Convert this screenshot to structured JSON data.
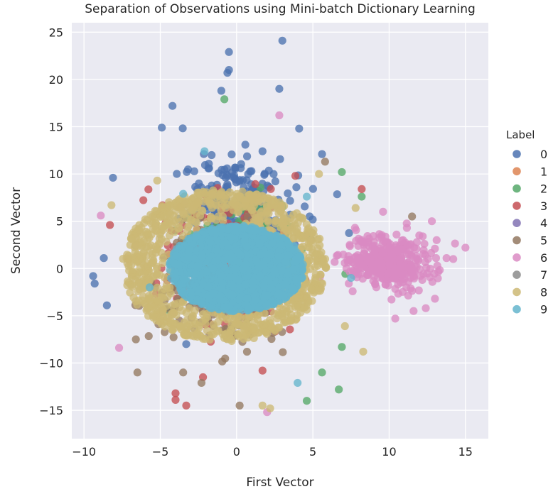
{
  "chart_data": {
    "type": "scatter",
    "title": "Separation of Observations using Mini-batch Dictionary Learning",
    "xlabel": "First Vector",
    "ylabel": "Second Vector",
    "xlim": [
      -10.8,
      16.5
    ],
    "ylim": [
      -18,
      26
    ],
    "xticks": [
      -10,
      -5,
      0,
      5,
      10,
      15
    ],
    "yticks": [
      -15,
      -10,
      -5,
      0,
      5,
      10,
      15,
      20,
      25
    ],
    "grid": true,
    "legend": {
      "title": "Label",
      "placement": "right",
      "entries": [
        "0",
        "1",
        "2",
        "3",
        "4",
        "5",
        "6",
        "7",
        "8",
        "9"
      ]
    },
    "series": [
      {
        "label": "0",
        "color": "#4c72b0",
        "center": [
          0.0,
          6.5
        ],
        "spread": [
          3.0,
          4.5
        ],
        "points": [
          [
            3.0,
            24.1
          ],
          [
            -0.5,
            22.9
          ],
          [
            -0.6,
            20.7
          ],
          [
            -0.5,
            21.0
          ],
          [
            -8.1,
            9.6
          ],
          [
            -8.7,
            1.1
          ],
          [
            -9.4,
            -0.8
          ],
          [
            -9.3,
            -1.6
          ],
          [
            -8.5,
            -3.9
          ],
          [
            -3.3,
            -8.0
          ],
          [
            -4.9,
            14.9
          ],
          [
            -4.2,
            17.2
          ],
          [
            -1.0,
            18.8
          ],
          [
            2.8,
            19.0
          ],
          [
            4.1,
            14.8
          ],
          [
            5.6,
            12.1
          ],
          [
            -1.8,
            10.6
          ],
          [
            1.7,
            12.4
          ]
        ]
      },
      {
        "label": "1",
        "color": "#dd8452",
        "center": [
          0.0,
          0.0
        ],
        "spread": [
          2.0,
          2.0
        ],
        "points": []
      },
      {
        "label": "2",
        "color": "#55a868",
        "center": [
          0.5,
          2.0
        ],
        "spread": [
          3.5,
          4.5
        ],
        "points": [
          [
            6.9,
            10.2
          ],
          [
            8.2,
            7.6
          ],
          [
            6.7,
            -12.8
          ],
          [
            4.6,
            -14.0
          ],
          [
            6.9,
            -8.3
          ],
          [
            5.6,
            -11.0
          ],
          [
            -0.8,
            17.9
          ]
        ]
      },
      {
        "label": "3",
        "color": "#c44e52",
        "center": [
          -1.0,
          1.0
        ],
        "spread": [
          3.5,
          5.5
        ],
        "points": [
          [
            -4.0,
            -13.9
          ],
          [
            -4.0,
            -13.2
          ],
          [
            -3.3,
            -14.5
          ],
          [
            -8.3,
            4.6
          ],
          [
            8.2,
            8.4
          ],
          [
            -2.2,
            -11.5
          ],
          [
            1.7,
            -10.8
          ]
        ]
      },
      {
        "label": "4",
        "color": "#8172b3",
        "center": [
          0.0,
          0.0
        ],
        "spread": [
          2.0,
          2.0
        ],
        "points": []
      },
      {
        "label": "5",
        "color": "#937860",
        "center": [
          -1.5,
          -2.0
        ],
        "spread": [
          3.5,
          5.0
        ],
        "points": [
          [
            -6.5,
            -11.0
          ],
          [
            0.2,
            -14.5
          ],
          [
            -2.3,
            -12.1
          ],
          [
            -3.5,
            -11.0
          ],
          [
            11.5,
            5.5
          ],
          [
            5.8,
            11.3
          ],
          [
            -6.6,
            -7.5
          ]
        ]
      },
      {
        "label": "6",
        "color": "#da8bc3",
        "center": [
          10.0,
          0.6
        ],
        "spread": [
          2.3,
          2.3
        ],
        "points": [
          [
            15.0,
            2.2
          ],
          [
            14.2,
            1.0
          ],
          [
            12.8,
            5.0
          ],
          [
            12.2,
            3.4
          ],
          [
            13.0,
            -3.2
          ],
          [
            12.4,
            -4.2
          ],
          [
            10.4,
            -5.3
          ],
          [
            11.6,
            -4.5
          ],
          [
            9.6,
            6.0
          ],
          [
            -7.7,
            -8.4
          ],
          [
            -8.9,
            5.6
          ],
          [
            2.0,
            -15.2
          ],
          [
            2.8,
            16.2
          ]
        ]
      },
      {
        "label": "7",
        "color": "#8c8c8c",
        "center": [
          0.0,
          0.0
        ],
        "spread": [
          2.0,
          2.0
        ],
        "points": []
      },
      {
        "label": "8",
        "color": "#ccb974",
        "center": [
          -0.8,
          0.3
        ],
        "spread": [
          4.3,
          4.5
        ],
        "points": [
          [
            8.3,
            -8.8
          ],
          [
            7.1,
            -6.1
          ],
          [
            -8.2,
            6.7
          ],
          [
            7.8,
            6.4
          ],
          [
            1.7,
            -14.5
          ],
          [
            2.2,
            -14.8
          ],
          [
            5.4,
            10.0
          ],
          [
            -5.2,
            9.3
          ]
        ]
      },
      {
        "label": "9",
        "color": "#64b5cd",
        "center": [
          0.0,
          0.0
        ],
        "spread": [
          4.2,
          4.2
        ],
        "points": [
          [
            7.5,
            -1.0
          ],
          [
            4.6,
            7.6
          ],
          [
            -3.5,
            7.9
          ],
          [
            -5.7,
            -2.0
          ],
          [
            4.0,
            -12.1
          ],
          [
            -2.1,
            12.4
          ]
        ]
      }
    ]
  }
}
